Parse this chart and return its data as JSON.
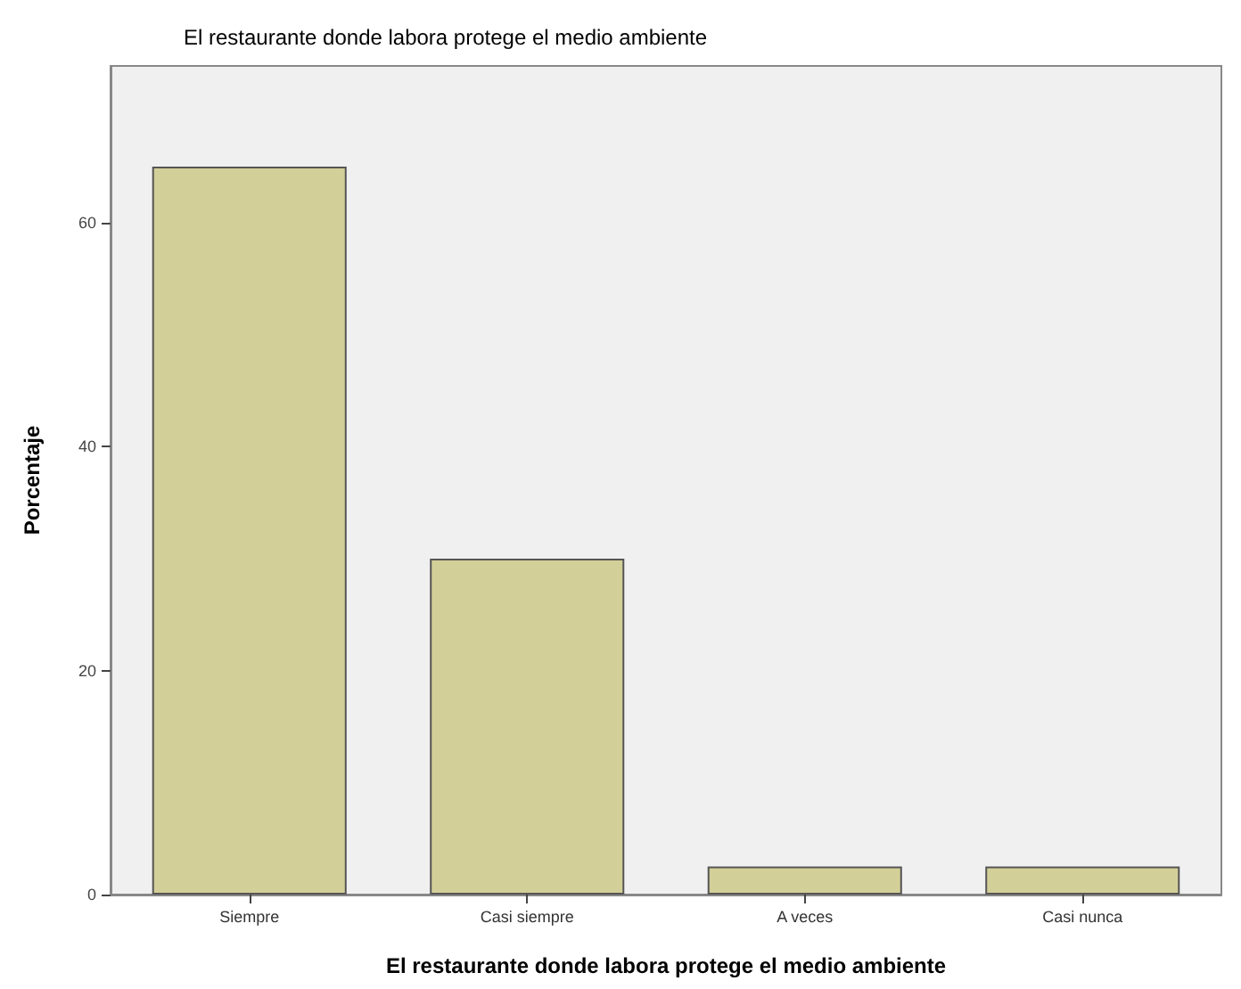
{
  "chart_data": {
    "type": "bar",
    "title": "El restaurante donde labora protege el medio ambiente",
    "xlabel": "El restaurante donde labora protege el medio ambiente",
    "ylabel": "Porcentaje",
    "categories": [
      "Siempre",
      "Casi siempre",
      "A veces",
      "Casi nunca"
    ],
    "values": [
      65,
      30,
      2.5,
      2.5
    ],
    "color": "#d3cf98",
    "ylim": [
      0,
      74
    ],
    "yticks": [
      0,
      20,
      40,
      60
    ],
    "grid": false
  }
}
